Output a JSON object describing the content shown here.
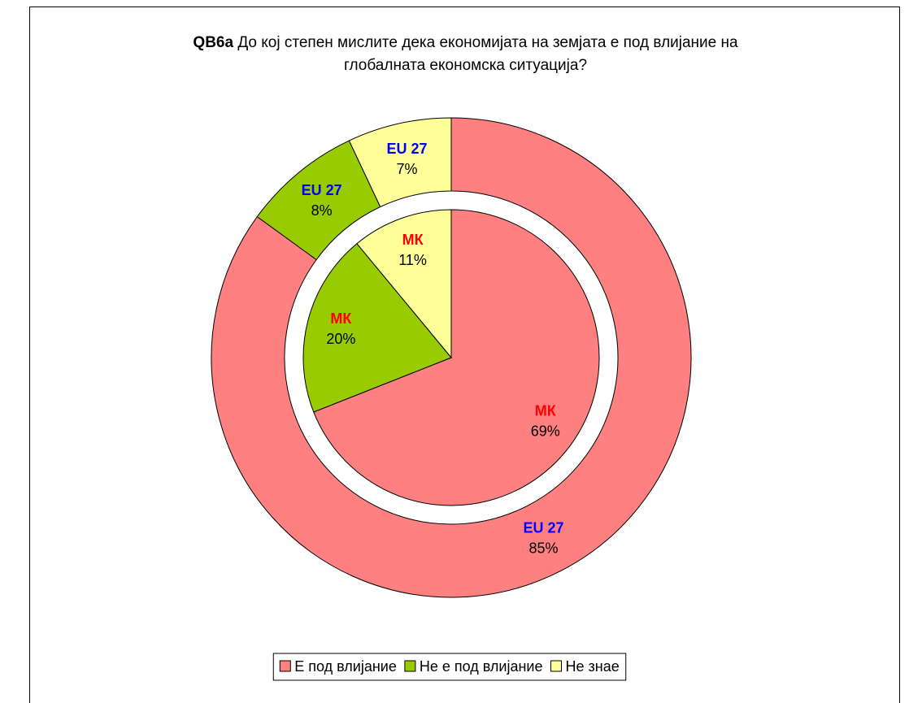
{
  "chart_data": {
    "type": "nested-pie",
    "title_code": "QB6a",
    "title": "До кој степен мислите дека економијата на земјата е под влијание на глобалната економска ситуација?",
    "categories": [
      "Е под влијание",
      "Не е под влијание",
      "Не знае"
    ],
    "colors": [
      "#ff8080",
      "#99cc00",
      "#ffff99"
    ],
    "series": [
      {
        "name": "МК",
        "color": "#ff0000",
        "values": [
          69,
          20,
          11
        ],
        "value_labels": [
          "69%",
          "20%",
          "11%"
        ]
      },
      {
        "name": "EU 27",
        "color": "#0000ff",
        "values": [
          85,
          8,
          7
        ],
        "value_labels": [
          "85%",
          "8%",
          "7%"
        ]
      }
    ],
    "legend": "bottom"
  }
}
